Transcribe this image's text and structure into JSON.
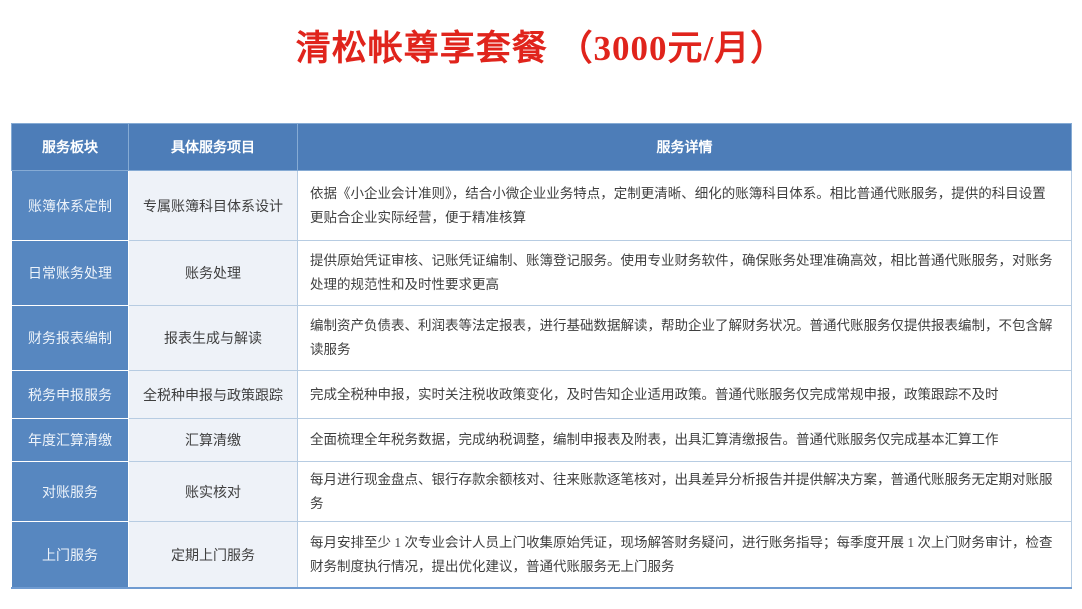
{
  "title": "清松帐尊享套餐 （3000元/月）",
  "colors": {
    "title_red": "#e0241c",
    "header_blue": "#4d7db8",
    "module_column_blue": "#5787c0",
    "item_column_tint": "#eef2f8",
    "cell_border": "#b7cce2",
    "bottom_border": "#6f9bd1"
  },
  "table": {
    "headers": [
      "服务板块",
      "具体服务项目",
      "服务详情"
    ],
    "rows": [
      {
        "module": "账簿体系定制",
        "item": "专属账簿科目体系设计",
        "detail": "依据《小企业会计准则》，结合小微企业业务特点，定制更清晰、细化的账簿科目体系。相比普通代账服务，提供的科目设置更贴合企业实际经营，便于精准核算"
      },
      {
        "module": "日常账务处理",
        "item": "账务处理",
        "detail": "提供原始凭证审核、记账凭证编制、账簿登记服务。使用专业财务软件，确保账务处理准确高效，相比普通代账服务，对账务处理的规范性和及时性要求更高"
      },
      {
        "module": "财务报表编制",
        "item": "报表生成与解读",
        "detail": "编制资产负债表、利润表等法定报表，进行基础数据解读，帮助企业了解财务状况。普通代账服务仅提供报表编制，不包含解读服务"
      },
      {
        "module": "税务申报服务",
        "item": "全税种申报与政策跟踪",
        "detail": "完成全税种申报，实时关注税收政策变化，及时告知企业适用政策。普通代账服务仅完成常规申报，政策跟踪不及时"
      },
      {
        "module": "年度汇算清缴",
        "item": "汇算清缴",
        "detail": "全面梳理全年税务数据，完成纳税调整，编制申报表及附表，出具汇算清缴报告。普通代账服务仅完成基本汇算工作"
      },
      {
        "module": "对账服务",
        "item": "账实核对",
        "detail": "每月进行现金盘点、银行存款余额核对、往来账款逐笔核对，出具差异分析报告并提供解决方案，普通代账服务无定期对账服务"
      },
      {
        "module": "上门服务",
        "item": "定期上门服务",
        "detail": "每月安排至少 1 次专业会计人员上门收集原始凭证，现场解答财务疑问，进行账务指导；每季度开展 1 次上门财务审计，检查财务制度执行情况，提出优化建议，普通代账服务无上门服务"
      }
    ]
  }
}
